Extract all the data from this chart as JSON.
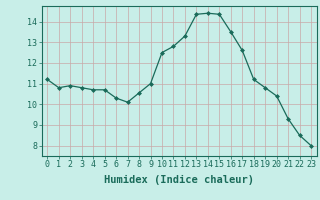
{
  "x": [
    0,
    1,
    2,
    3,
    4,
    5,
    6,
    7,
    8,
    9,
    10,
    11,
    12,
    13,
    14,
    15,
    16,
    17,
    18,
    19,
    20,
    21,
    22,
    23
  ],
  "y": [
    11.2,
    10.8,
    10.9,
    10.8,
    10.7,
    10.7,
    10.3,
    10.1,
    10.55,
    11.0,
    12.5,
    12.8,
    13.3,
    14.35,
    14.4,
    14.35,
    13.5,
    12.6,
    11.2,
    10.8,
    10.4,
    9.3,
    8.5,
    8.0
  ],
  "line_color": "#1a6b5a",
  "marker": "D",
  "marker_size": 2.0,
  "bg_color": "#c8eee8",
  "grid_color_v": "#c8a8a8",
  "grid_color_h": "#c8a8a8",
  "xlabel": "Humidex (Indice chaleur)",
  "xlim": [
    -0.5,
    23.5
  ],
  "ylim": [
    7.5,
    14.75
  ],
  "yticks": [
    8,
    9,
    10,
    11,
    12,
    13,
    14
  ],
  "xticks": [
    0,
    1,
    2,
    3,
    4,
    5,
    6,
    7,
    8,
    9,
    10,
    11,
    12,
    13,
    14,
    15,
    16,
    17,
    18,
    19,
    20,
    21,
    22,
    23
  ],
  "tick_color": "#1a6b5a",
  "label_color": "#1a6b5a",
  "axis_color": "#1a6b5a",
  "tick_fontsize": 6.0,
  "xlabel_fontsize": 7.5
}
